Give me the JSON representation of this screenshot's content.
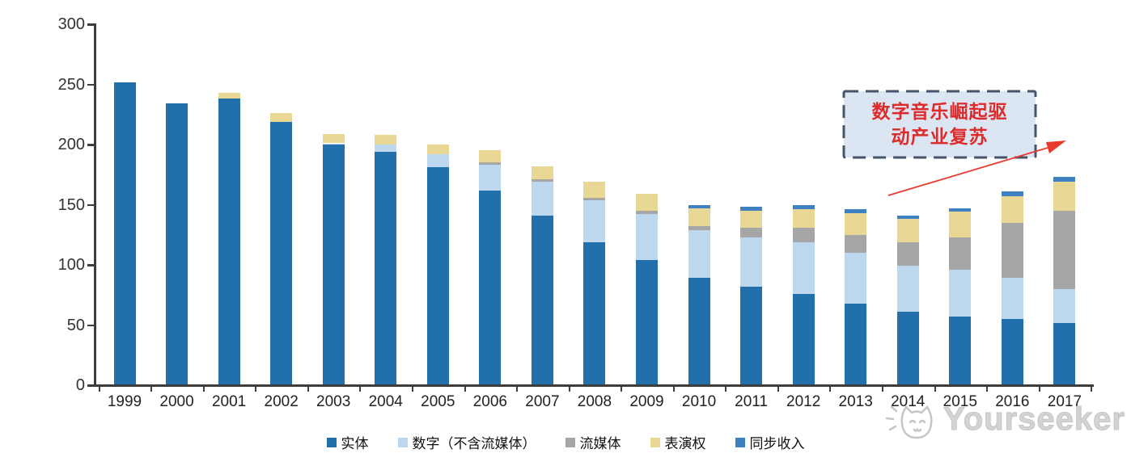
{
  "chart_data": {
    "type": "bar",
    "stacked": true,
    "categories": [
      "1999",
      "2000",
      "2001",
      "2002",
      "2003",
      "2004",
      "2005",
      "2006",
      "2007",
      "2008",
      "2009",
      "2010",
      "2011",
      "2012",
      "2013",
      "2014",
      "2015",
      "2016",
      "2017"
    ],
    "series": [
      {
        "name": "实体",
        "color": "#2170AC",
        "values": [
          252,
          234,
          238,
          219,
          200,
          194,
          181,
          162,
          141,
          119,
          104,
          89,
          82,
          76,
          68,
          61,
          57,
          55,
          52
        ]
      },
      {
        "name": "数字（不含流媒体）",
        "color": "#BDD7EE",
        "values": [
          0,
          0,
          0,
          0,
          1,
          6,
          11,
          21,
          28,
          35,
          38,
          40,
          41,
          43,
          42,
          38,
          39,
          34,
          28
        ]
      },
      {
        "name": "流媒体",
        "color": "#A6A6A6",
        "values": [
          0,
          0,
          0,
          0,
          0,
          0,
          0,
          2,
          2,
          2,
          3,
          3,
          8,
          12,
          15,
          20,
          27,
          46,
          65
        ]
      },
      {
        "name": "表演权",
        "color": "#E8D795",
        "values": [
          0,
          0,
          5,
          7,
          8,
          8,
          8,
          10,
          11,
          13,
          14,
          15,
          14,
          15,
          18,
          19,
          21,
          22,
          24
        ]
      },
      {
        "name": "同步收入",
        "color": "#3F80C0",
        "values": [
          0,
          0,
          0,
          0,
          0,
          0,
          0,
          0,
          0,
          0,
          0,
          3,
          3,
          4,
          3,
          3,
          3,
          4,
          4
        ]
      }
    ],
    "ylim": [
      0,
      300
    ],
    "yticks": [
      0,
      50,
      100,
      150,
      200,
      250,
      300
    ],
    "grid": false,
    "legend_position": "bottom"
  },
  "annotation": {
    "line1": "数字音乐崛起驱",
    "line2": "动产业复苏",
    "text_color": "#DD2A2A",
    "box_fill": "#DCE6F2",
    "box_border": "#44546A",
    "arrow_color": "#E8392F"
  },
  "watermark": {
    "text": "Yourseeker",
    "logo": "cat-face-logo",
    "color": "#CFCFCF"
  },
  "axis": {
    "color": "#3D3D3D",
    "label_color": "#222222"
  }
}
